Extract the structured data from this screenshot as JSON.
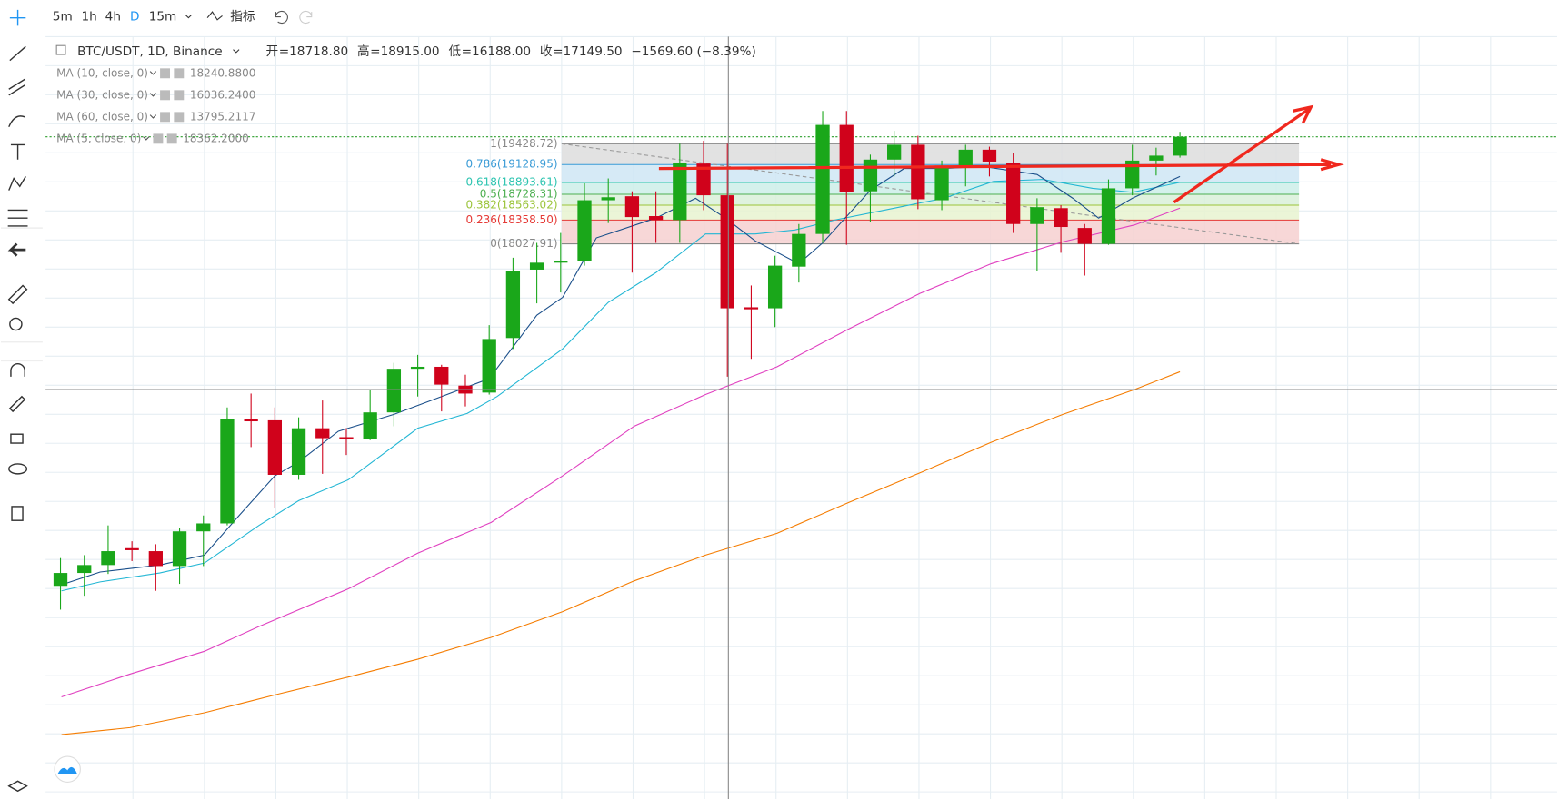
{
  "toolbar": {
    "intervals": [
      "5m",
      "1h",
      "4h",
      "D",
      "15m"
    ],
    "indicators": "指标"
  },
  "legend": {
    "symbol": "BTC/USDT, 1D, Binance",
    "ohlc": [
      {
        "label": "开",
        "value": "=18718.80"
      },
      {
        "label": "高",
        "value": "=18915.00"
      },
      {
        "label": "低",
        "value": "=16188.00"
      },
      {
        "label": "收",
        "value": "=17149.50"
      }
    ],
    "change": "−1569.60 (−8.39%)"
  },
  "indicators": [
    {
      "name": "MA (10, close, 0)",
      "value": "18240.8800",
      "color": "#22b6d4"
    },
    {
      "name": "MA (30, close, 0)",
      "value": "16036.2400",
      "color": "#e040c0"
    },
    {
      "name": "MA (60, close, 0)",
      "value": "13795.2117",
      "color": "#f57c00"
    },
    {
      "name": "MA (5, close, 0)",
      "value": "18362.2000",
      "color": "#1a4f8a"
    }
  ],
  "fib_levels": [
    {
      "label": "1(19428.72)",
      "color": "#888888"
    },
    {
      "label": "0.786(19128.95)",
      "color": "#3a9bd6"
    },
    {
      "label": "0.618(18893.61)",
      "color": "#2cc4b0"
    },
    {
      "label": "0.5(18728.31)",
      "color": "#4caf50"
    },
    {
      "label": "0.382(18563.02)",
      "color": "#9bc43a"
    },
    {
      "label": "0.236(18358.50)",
      "color": "#e53935"
    },
    {
      "label": "0(18027.91)",
      "color": "#888888"
    }
  ]
}
